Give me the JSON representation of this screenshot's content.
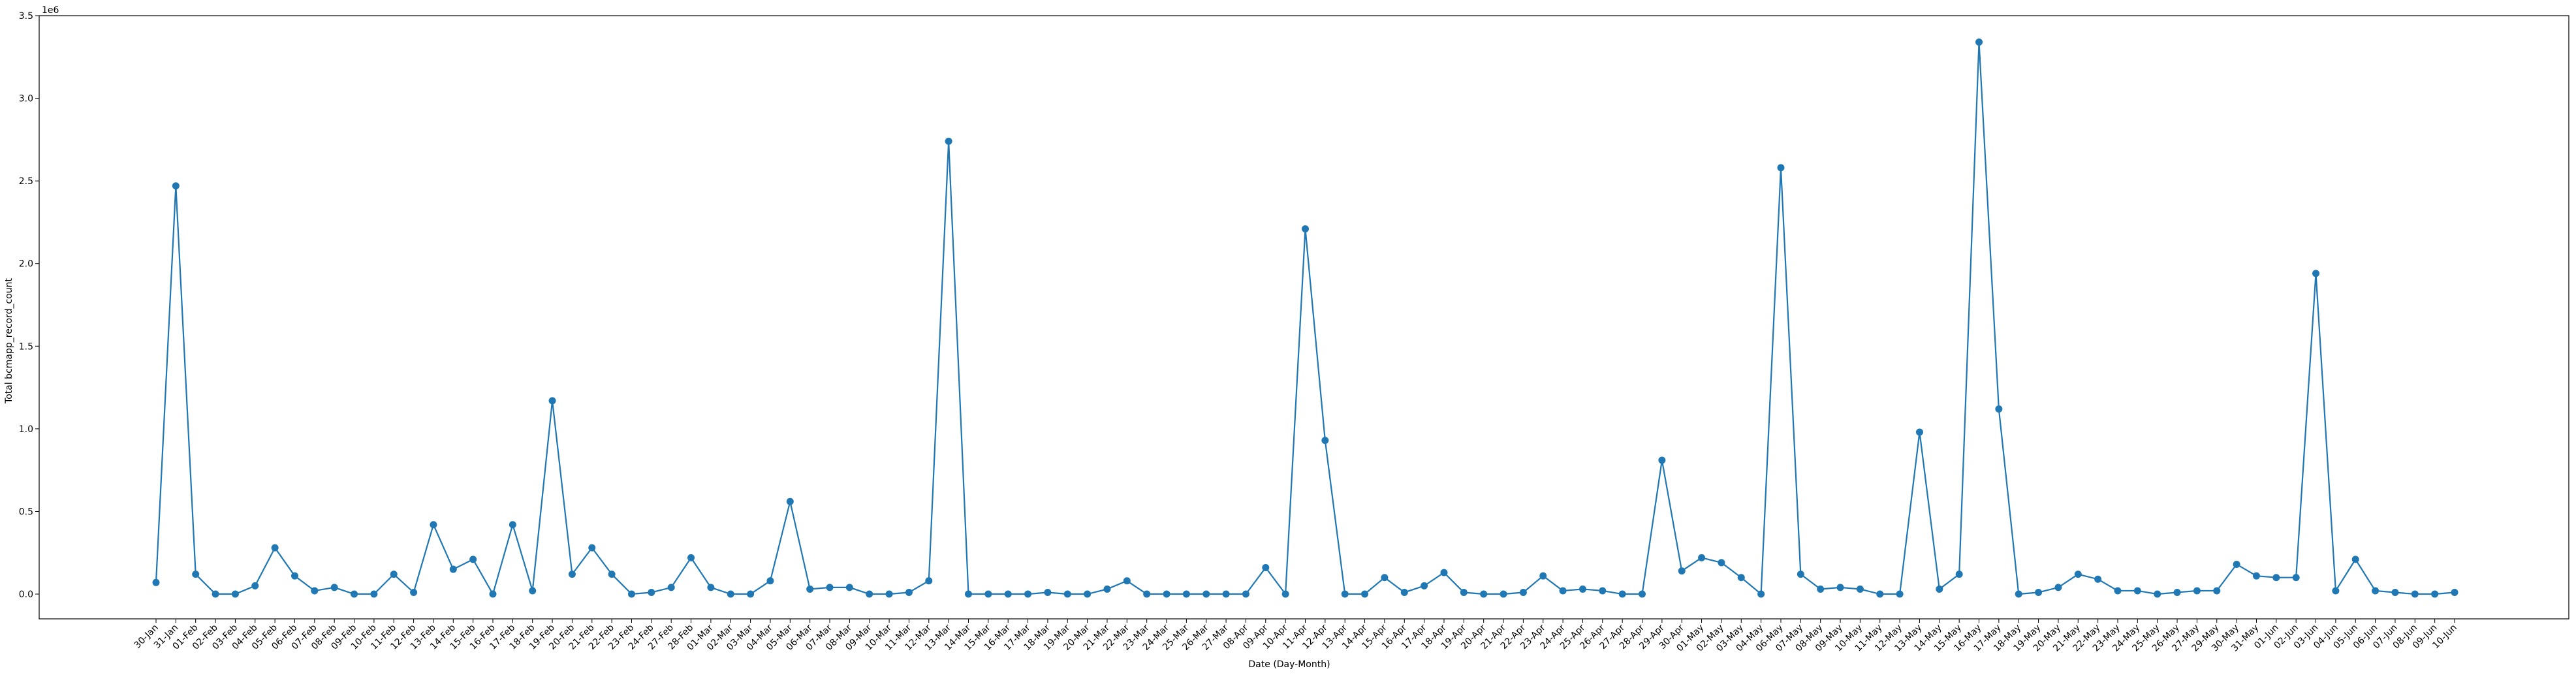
{
  "colors": {
    "series": "#1f77b4",
    "axes": "#000000",
    "background": "#ffffff"
  },
  "chart_data": {
    "type": "line",
    "markers": true,
    "grid": false,
    "legend": null,
    "xlabel": "Date (Day-Month)",
    "ylabel": "Total bcmapp_record_count",
    "y_offset_label": "1e6",
    "ylim": [
      -0.15,
      3.5
    ],
    "yticks": [
      0.0,
      0.5,
      1.0,
      1.5,
      2.0,
      2.5,
      3.0,
      3.5
    ],
    "ytick_labels": [
      "0.0",
      "0.5",
      "1.0",
      "1.5",
      "2.0",
      "2.5",
      "3.0",
      "3.5"
    ],
    "x": [
      "30-Jan",
      "31-Jan",
      "01-Feb",
      "02-Feb",
      "03-Feb",
      "04-Feb",
      "05-Feb",
      "06-Feb",
      "07-Feb",
      "08-Feb",
      "09-Feb",
      "10-Feb",
      "11-Feb",
      "12-Feb",
      "13-Feb",
      "14-Feb",
      "15-Feb",
      "16-Feb",
      "17-Feb",
      "18-Feb",
      "19-Feb",
      "20-Feb",
      "21-Feb",
      "22-Feb",
      "23-Feb",
      "24-Feb",
      "27-Feb",
      "28-Feb",
      "01-Mar",
      "02-Mar",
      "03-Mar",
      "04-Mar",
      "05-Mar",
      "06-Mar",
      "07-Mar",
      "08-Mar",
      "09-Mar",
      "10-Mar",
      "11-Mar",
      "12-Mar",
      "13-Mar",
      "14-Mar",
      "15-Mar",
      "16-Mar",
      "17-Mar",
      "18-Mar",
      "19-Mar",
      "20-Mar",
      "21-Mar",
      "22-Mar",
      "23-Mar",
      "24-Mar",
      "25-Mar",
      "26-Mar",
      "27-Mar",
      "08-Apr",
      "09-Apr",
      "10-Apr",
      "11-Apr",
      "12-Apr",
      "13-Apr",
      "14-Apr",
      "15-Apr",
      "16-Apr",
      "17-Apr",
      "18-Apr",
      "19-Apr",
      "20-Apr",
      "21-Apr",
      "22-Apr",
      "23-Apr",
      "24-Apr",
      "25-Apr",
      "26-Apr",
      "27-Apr",
      "28-Apr",
      "29-Apr",
      "30-Apr",
      "01-May",
      "02-May",
      "03-May",
      "04-May",
      "06-May",
      "07-May",
      "08-May",
      "09-May",
      "10-May",
      "11-May",
      "12-May",
      "13-May",
      "14-May",
      "15-May",
      "16-May",
      "17-May",
      "18-May",
      "19-May",
      "20-May",
      "21-May",
      "22-May",
      "23-May",
      "24-May",
      "25-May",
      "26-May",
      "27-May",
      "29-May",
      "30-May",
      "31-May",
      "01-Jun",
      "02-Jun",
      "03-Jun",
      "04-Jun",
      "05-Jun",
      "06-Jun",
      "07-Jun",
      "08-Jun",
      "09-Jun",
      "10-Jun"
    ],
    "values": [
      0.07,
      2.47,
      0.12,
      0.0,
      0.0,
      0.05,
      0.28,
      0.11,
      0.02,
      0.04,
      0.0,
      0.0,
      0.12,
      0.01,
      0.42,
      0.15,
      0.21,
      0.0,
      0.42,
      0.02,
      1.17,
      0.12,
      0.28,
      0.12,
      0.0,
      0.01,
      0.04,
      0.22,
      0.04,
      0.0,
      0.0,
      0.08,
      0.56,
      0.03,
      0.04,
      0.04,
      0.0,
      0.0,
      0.01,
      0.08,
      2.74,
      0.0,
      0.0,
      0.0,
      0.0,
      0.01,
      0.0,
      0.0,
      0.03,
      0.08,
      0.0,
      0.0,
      0.0,
      0.0,
      0.0,
      0.0,
      0.16,
      0.0,
      2.21,
      0.93,
      0.0,
      0.0,
      0.1,
      0.01,
      0.05,
      0.13,
      0.01,
      0.0,
      0.0,
      0.01,
      0.11,
      0.02,
      0.03,
      0.02,
      0.0,
      0.0,
      0.81,
      0.14,
      0.22,
      0.19,
      0.1,
      0.0,
      2.58,
      0.12,
      0.03,
      0.04,
      0.03,
      0.0,
      0.0,
      0.98,
      0.03,
      0.12,
      3.34,
      1.12,
      0.0,
      0.01,
      0.04,
      0.12,
      0.09,
      0.02,
      0.02,
      0.0,
      0.01,
      0.02,
      0.02,
      0.18,
      0.11,
      0.1,
      0.1,
      1.94,
      0.02,
      0.21,
      0.02,
      0.01,
      0.0,
      0.0,
      0.01
    ]
  }
}
